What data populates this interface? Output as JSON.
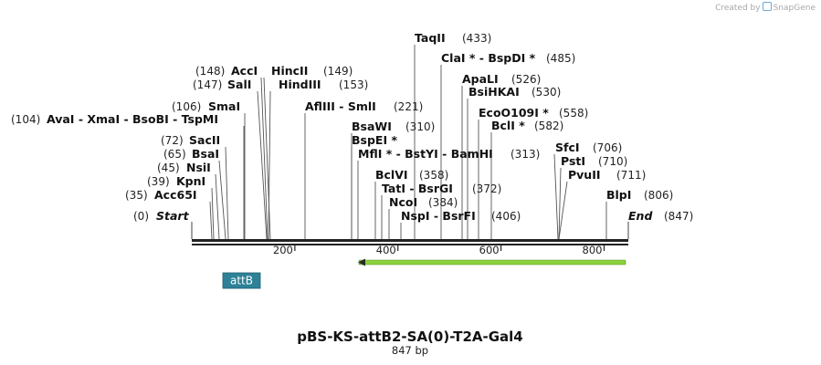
{
  "credit": {
    "prefix": "Created by",
    "brand": "SnapGene"
  },
  "plasmid": {
    "name": "pBS-KS-attB2-SA(0)-T2A-Gal4",
    "length_label": "847 bp",
    "length": 847
  },
  "ends": {
    "start_label": "Start",
    "start_pos": "(0)",
    "end_label": "End",
    "end_pos": "(847)"
  },
  "axis_ticks": [
    "200",
    "400",
    "600",
    "800"
  ],
  "feature": {
    "name": "attB",
    "color": "#2e8197"
  },
  "orf": {
    "color": "#8bd13c",
    "direction": "reverse"
  },
  "site_groups": [
    {
      "pos": "(433)",
      "cut": 433,
      "names": [
        "TaqII"
      ]
    },
    {
      "pos": "(485)",
      "cut": 485,
      "names": [
        "ClaI *",
        "BspDI *"
      ]
    },
    {
      "pos": "(526)",
      "cut": 526,
      "names": [
        "ApaLI"
      ]
    },
    {
      "pos": "(530)",
      "cut": 530,
      "names": [
        "BsiHKAI"
      ]
    },
    {
      "pos": "(558)",
      "cut": 558,
      "names": [
        "EcoO109I *"
      ]
    },
    {
      "pos": "(582)",
      "cut": 582,
      "names": [
        "BclI *"
      ]
    },
    {
      "pos": "(310)",
      "cut": 310,
      "names": [
        "BsaWI"
      ]
    },
    {
      "pos": "",
      "cut": 310,
      "names": [
        "BspEI *"
      ]
    },
    {
      "pos": "(313)",
      "cut": 313,
      "names": [
        "MflI *",
        "BstYI",
        "BamHI"
      ]
    },
    {
      "pos": "(358)",
      "cut": 358,
      "names": [
        "BclVI"
      ]
    },
    {
      "pos": "(372)",
      "cut": 372,
      "names": [
        "TatI",
        "BsrGI"
      ]
    },
    {
      "pos": "(384)",
      "cut": 384,
      "names": [
        "NcoI"
      ]
    },
    {
      "pos": "(406)",
      "cut": 406,
      "names": [
        "NspI",
        "BsrFI"
      ]
    },
    {
      "pos": "(221)",
      "cut": 221,
      "names": [
        "AflIII",
        "SmlI"
      ]
    },
    {
      "pos": "(149)",
      "cut": 149,
      "names": [
        "HincII"
      ]
    },
    {
      "pos": "(153)",
      "cut": 153,
      "names": [
        "HindIII"
      ]
    },
    {
      "pos": "(148)",
      "cut": 148,
      "names": [
        "AccI"
      ]
    },
    {
      "pos": "(147)",
      "cut": 147,
      "names": [
        "SalI"
      ]
    },
    {
      "pos": "(106)",
      "cut": 106,
      "names": [
        "SmaI"
      ]
    },
    {
      "pos": "(104)",
      "cut": 104,
      "names": [
        "AvaI",
        "XmaI",
        "BsoBI",
        "TspMI"
      ]
    },
    {
      "pos": "(72)",
      "cut": 72,
      "names": [
        "SacII"
      ]
    },
    {
      "pos": "(65)",
      "cut": 65,
      "names": [
        "BsaI"
      ]
    },
    {
      "pos": "(45)",
      "cut": 45,
      "names": [
        "NsiI"
      ]
    },
    {
      "pos": "(39)",
      "cut": 39,
      "names": [
        "KpnI"
      ]
    },
    {
      "pos": "(35)",
      "cut": 35,
      "names": [
        "Acc65I"
      ]
    },
    {
      "pos": "(706)",
      "cut": 706,
      "names": [
        "SfcI"
      ]
    },
    {
      "pos": "(710)",
      "cut": 710,
      "names": [
        "PstI"
      ]
    },
    {
      "pos": "(711)",
      "cut": 711,
      "names": [
        "PvuII"
      ]
    },
    {
      "pos": "(806)",
      "cut": 806,
      "names": [
        "BlpI"
      ]
    }
  ]
}
